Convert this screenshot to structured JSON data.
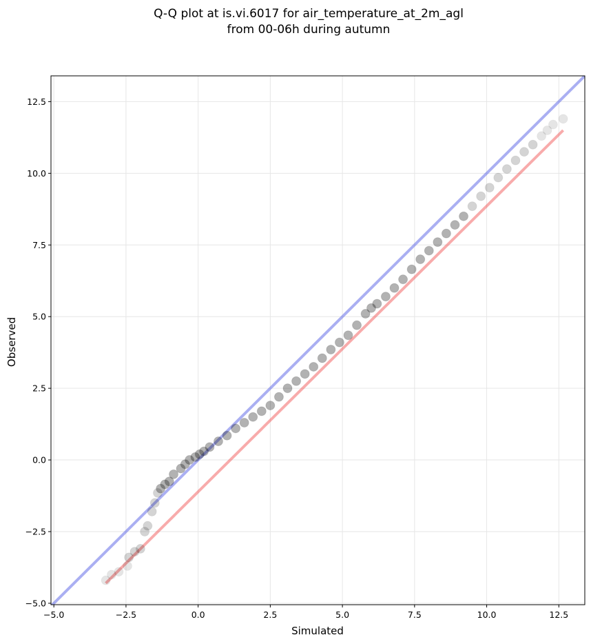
{
  "chart_data": {
    "type": "scatter",
    "title_lines": [
      "Q-Q plot at is.vi.6017 for air_temperature_at_2m_agl",
      "from 00-06h during autumn"
    ],
    "xlabel": "Simulated",
    "ylabel": "Observed",
    "xlim": [
      -5.1,
      13.4
    ],
    "ylim": [
      -5.05,
      13.4
    ],
    "xticks": [
      -5.0,
      -2.5,
      0.0,
      2.5,
      5.0,
      7.5,
      10.0,
      12.5
    ],
    "yticks": [
      -5.0,
      -2.5,
      0.0,
      2.5,
      5.0,
      7.5,
      10.0,
      12.5
    ],
    "xtick_labels": [
      "−5.0",
      "−2.5",
      "0.0",
      "2.5",
      "5.0",
      "7.5",
      "10.0",
      "12.5"
    ],
    "ytick_labels": [
      "−5.0",
      "−2.5",
      "0.0",
      "2.5",
      "5.0",
      "7.5",
      "10.0",
      "12.5"
    ],
    "grid": true,
    "colors": {
      "points": "#000000",
      "identity_line": "#5560e6",
      "fit_line": "#f04545"
    },
    "identity_line": {
      "x": [
        -5.1,
        13.4
      ],
      "y": [
        -5.1,
        13.4
      ]
    },
    "fit_line": {
      "x": [
        -3.2,
        12.65
      ],
      "y": [
        -4.3,
        11.5
      ]
    },
    "quantiles": {
      "x": [
        -3.2,
        -3.0,
        -2.75,
        -2.45,
        -2.4,
        -2.2,
        -2.0,
        -1.85,
        -1.75,
        -1.6,
        -1.5,
        -1.4,
        -1.3,
        -1.15,
        -1.0,
        -0.85,
        -0.6,
        -0.45,
        -0.3,
        -0.1,
        0.05,
        0.2,
        0.4,
        0.7,
        1.0,
        1.3,
        1.6,
        1.9,
        2.2,
        2.5,
        2.8,
        3.1,
        3.4,
        3.7,
        4.0,
        4.3,
        4.6,
        4.9,
        5.2,
        5.5,
        5.8,
        6.0,
        6.2,
        6.5,
        6.8,
        7.1,
        7.4,
        7.7,
        8.0,
        8.3,
        8.6,
        8.9,
        9.2,
        9.5,
        9.8,
        10.1,
        10.4,
        10.7,
        11.0,
        11.3,
        11.6,
        11.9,
        12.1,
        12.3,
        12.65
      ],
      "y": [
        -4.2,
        -4.0,
        -3.9,
        -3.7,
        -3.4,
        -3.2,
        -3.1,
        -2.5,
        -2.3,
        -1.8,
        -1.5,
        -1.15,
        -1.0,
        -0.85,
        -0.75,
        -0.5,
        -0.3,
        -0.15,
        0.0,
        0.1,
        0.2,
        0.3,
        0.45,
        0.65,
        0.85,
        1.1,
        1.3,
        1.5,
        1.7,
        1.9,
        2.2,
        2.5,
        2.75,
        3.0,
        3.25,
        3.55,
        3.85,
        4.1,
        4.35,
        4.7,
        5.1,
        5.3,
        5.45,
        5.7,
        6.0,
        6.3,
        6.65,
        7.0,
        7.3,
        7.6,
        7.9,
        8.2,
        8.5,
        8.85,
        9.2,
        9.5,
        9.85,
        10.15,
        10.45,
        10.75,
        11.0,
        11.3,
        11.5,
        11.7,
        11.9
      ]
    }
  }
}
